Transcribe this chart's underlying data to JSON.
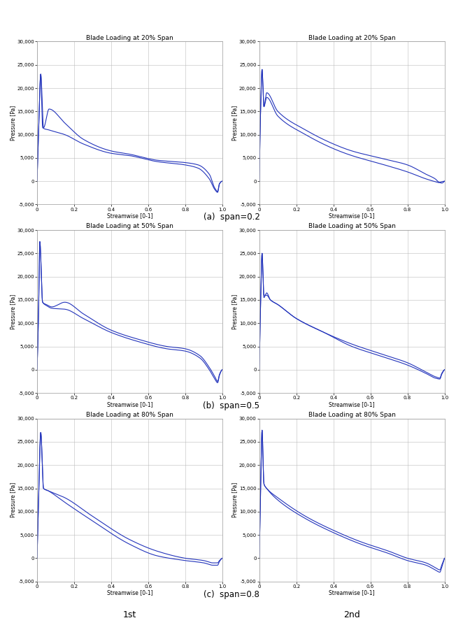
{
  "titles": [
    [
      "Blade Loading at 20% Span",
      "Blade Loading at 20% Span"
    ],
    [
      "Blade Loading at 50% Span",
      "Blade Loading at 50% Span"
    ],
    [
      "Blade Loading at 80% Span",
      "Blade Loading at 80% Span"
    ]
  ],
  "row_labels": [
    "(a)  span=0.2",
    "(b)  span=0.5",
    "(c)  span=0.8"
  ],
  "col_labels": [
    "1st",
    "2nd"
  ],
  "xlabel": "Streamwise [0-1]",
  "ylabel": "Pressure [Pa]",
  "ylim": [
    -5000,
    30000
  ],
  "xlim": [
    0,
    1
  ],
  "yticks": [
    -5000,
    0,
    5000,
    10000,
    15000,
    20000,
    25000,
    30000
  ],
  "xticks": [
    0,
    0.2,
    0.4,
    0.6,
    0.8,
    1.0
  ],
  "line_color": "#2233bb",
  "line_width": 0.8,
  "background_color": "#ffffff",
  "grid_color": "#bbbbbb",
  "title_fontsize": 6.5,
  "label_fontsize": 5.5,
  "tick_fontsize": 5,
  "row_label_fontsize": 8.5,
  "col_label_fontsize": 9
}
